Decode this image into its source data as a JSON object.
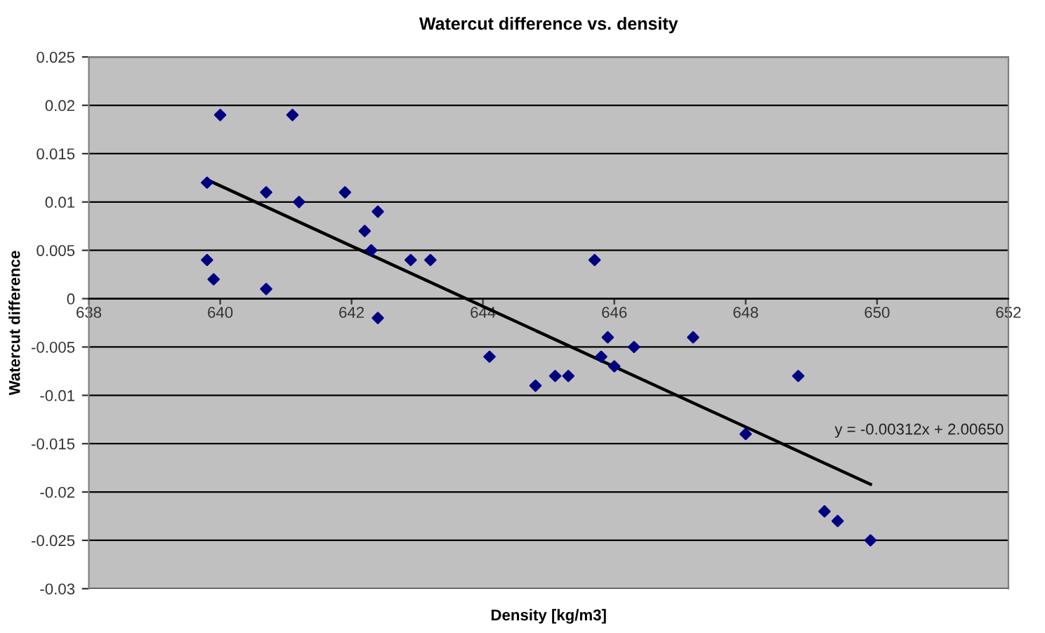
{
  "chart_data": {
    "type": "scatter",
    "title": "Watercut difference vs. density",
    "xlabel": "Density [kg/m3]",
    "ylabel": "Watercut difference",
    "series": [
      {
        "color": "#000080",
        "marker": "diamond",
        "x": [
          639.8,
          640.0,
          639.8,
          639.9,
          640.7,
          640.7,
          641.1,
          641.2,
          641.9,
          642.2,
          642.3,
          642.4,
          642.4,
          642.9,
          643.2,
          644.1,
          644.8,
          645.1,
          645.3,
          645.7,
          645.8,
          645.9,
          646.0,
          646.3,
          647.2,
          648.0,
          648.8,
          649.2,
          649.4,
          649.9
        ],
        "values": [
          0.012,
          0.019,
          0.004,
          0.002,
          0.011,
          0.001,
          0.019,
          0.01,
          0.011,
          0.007,
          0.005,
          0.009,
          -0.002,
          0.004,
          0.004,
          -0.006,
          -0.009,
          -0.008,
          -0.008,
          0.004,
          -0.006,
          -0.004,
          -0.007,
          -0.005,
          -0.004,
          -0.014,
          -0.008,
          -0.022,
          -0.023,
          -0.025
        ]
      },
      {
        "type": "line",
        "color": "#000000",
        "line_style": "solid",
        "x": [
          639.8,
          649.9
        ],
        "values": [
          0.0123,
          -0.0192
        ]
      }
    ],
    "annotations": [
      "y = -0.00312x + 2.00650"
    ],
    "xlim": [
      638,
      652
    ],
    "xticks": [
      638,
      640,
      642,
      644,
      646,
      648,
      650,
      652
    ],
    "ylim": [
      -0.03,
      0.025
    ],
    "yticks": [
      -0.03,
      -0.025,
      -0.02,
      -0.015,
      -0.01,
      -0.005,
      0,
      0.005,
      0.01,
      0.015,
      0.02,
      0.025
    ],
    "grid": "y",
    "legend": false
  }
}
